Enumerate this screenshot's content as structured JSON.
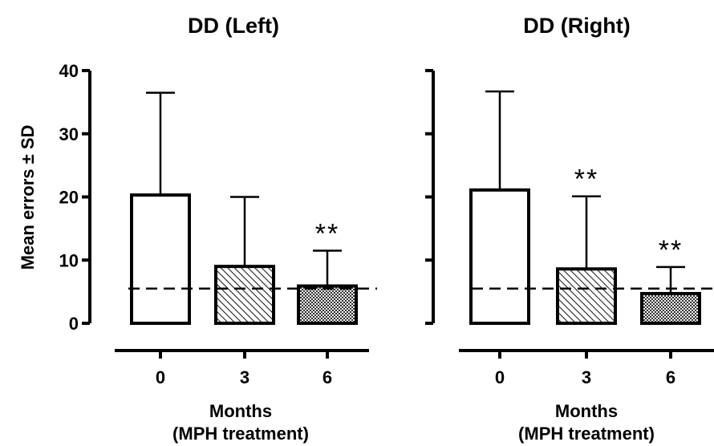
{
  "ylabel": "Mean errors ± SD",
  "chart_data": [
    {
      "type": "bar",
      "title": "DD (Left)",
      "xlabel": [
        "Months",
        "(MPH treatment)"
      ],
      "ylabel": "Mean errors ± SD",
      "categories": [
        "0",
        "3",
        "6"
      ],
      "values": [
        20.3,
        9.0,
        5.9
      ],
      "error_sd": [
        16.2,
        11.0,
        5.6
      ],
      "fill_patterns": [
        "open",
        "hatched",
        "crosshatched"
      ],
      "significance": [
        "",
        "",
        "**"
      ],
      "reference_line": 5.5,
      "ylim": [
        0,
        40
      ],
      "yticks": [
        "0",
        "10",
        "20",
        "30",
        "40"
      ]
    },
    {
      "type": "bar",
      "title": "DD (Right)",
      "xlabel": [
        "Months",
        "(MPH treatment)"
      ],
      "categories": [
        "0",
        "3",
        "6"
      ],
      "values": [
        21.1,
        8.6,
        4.7
      ],
      "error_sd": [
        15.6,
        11.5,
        4.2
      ],
      "fill_patterns": [
        "open",
        "hatched",
        "crosshatched"
      ],
      "significance": [
        "",
        "**",
        "**"
      ],
      "reference_line": 5.5,
      "ylim": [
        0,
        40
      ],
      "yticks": [
        "0",
        "10",
        "20",
        "30",
        "40"
      ]
    }
  ]
}
